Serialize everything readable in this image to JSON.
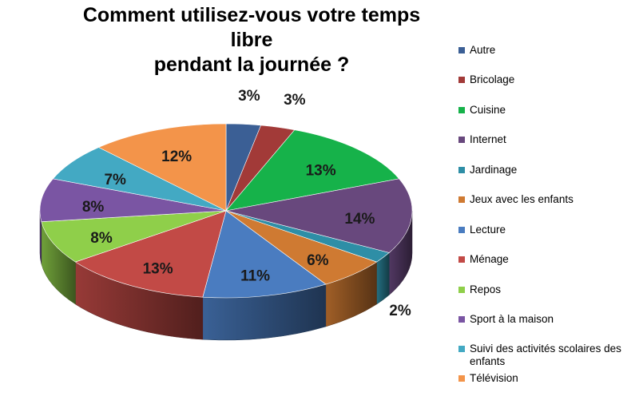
{
  "chart_data": {
    "type": "pie",
    "style": "3d",
    "title_lines": [
      "Comment utilisez-vous votre temps libre",
      "pendant la journée ?"
    ],
    "slices": [
      {
        "name": "Autre",
        "value": 3,
        "label": "3%",
        "color": "#3b5f95"
      },
      {
        "name": "Bricolage",
        "value": 3,
        "label": "3%",
        "color": "#a23a38"
      },
      {
        "name": "Cuisine",
        "value": 13,
        "label": "13%",
        "color": "#16b24a"
      },
      {
        "name": "Internet",
        "value": 14,
        "label": "14%",
        "color": "#68487d"
      },
      {
        "name": "Jardinage",
        "value": 2,
        "label": "2%",
        "color": "#2e8ea6"
      },
      {
        "name": "Jeux avec les enfants",
        "value": 6,
        "label": "6%",
        "color": "#cf7a32"
      },
      {
        "name": "Lecture",
        "value": 11,
        "label": "11%",
        "color": "#4a7cc0"
      },
      {
        "name": "Ménage",
        "value": 13,
        "label": "13%",
        "color": "#c24a46"
      },
      {
        "name": "Repos",
        "value": 8,
        "label": "8%",
        "color": "#8fcf4a"
      },
      {
        "name": "Sport à la maison",
        "value": 8,
        "label": "8%",
        "color": "#7a55a3"
      },
      {
        "name": "Suivi des activités scolaires des enfants",
        "value": 7,
        "label": "7%",
        "color": "#43a9c3"
      },
      {
        "name": "Télévision",
        "value": 12,
        "label": "12%",
        "color": "#f3944a"
      }
    ],
    "legend_position": "right"
  }
}
